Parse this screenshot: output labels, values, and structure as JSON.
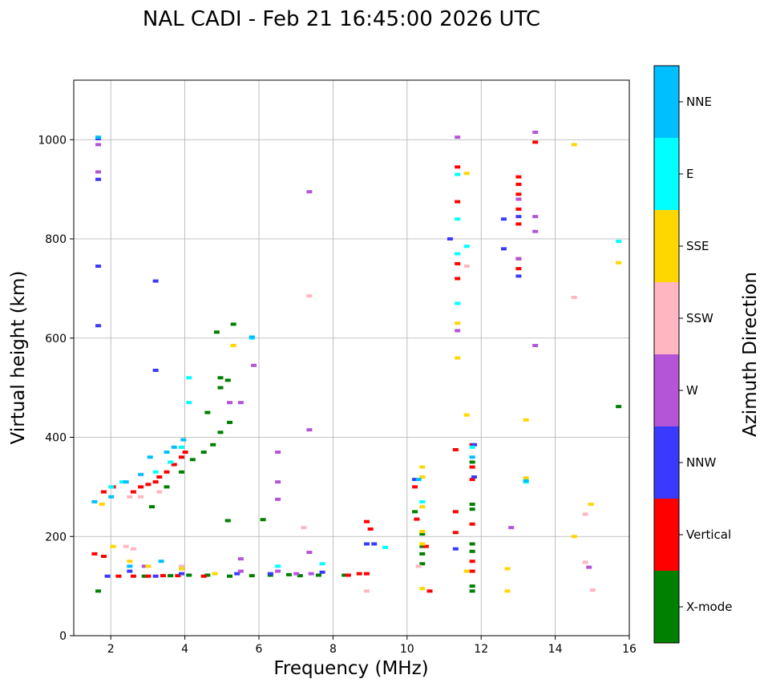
{
  "chart_data": {
    "type": "scatter",
    "title": "NAL CADI - Feb 21 16:45:00 2026 UTC",
    "xlabel": "Frequency (MHz)",
    "ylabel": "Virtual height (km)",
    "xlim": [
      1,
      16
    ],
    "ylim": [
      0,
      1120
    ],
    "x_ticks": [
      2,
      4,
      6,
      8,
      10,
      12,
      14,
      16
    ],
    "y_ticks": [
      0,
      200,
      400,
      600,
      800,
      1000
    ],
    "grid": true,
    "colorbar": {
      "label": "Azimuth Direction",
      "categories": [
        {
          "name": "X-mode",
          "color": "#008000"
        },
        {
          "name": "Vertical",
          "color": "#ff0000"
        },
        {
          "name": "NNW",
          "color": "#3a3aff"
        },
        {
          "name": "W",
          "color": "#b455d8"
        },
        {
          "name": "SSW",
          "color": "#ffb6c1"
        },
        {
          "name": "SSE",
          "color": "#ffd700"
        },
        {
          "name": "E",
          "color": "#00ffff"
        },
        {
          "name": "NNE",
          "color": "#00bfff"
        }
      ]
    },
    "series": [
      {
        "name": "X-mode",
        "points": [
          [
            1.65,
            90
          ],
          [
            2.9,
            120
          ],
          [
            3.6,
            121
          ],
          [
            4.1,
            122
          ],
          [
            4.6,
            122
          ],
          [
            5.2,
            120
          ],
          [
            5.8,
            121
          ],
          [
            6.3,
            122
          ],
          [
            6.8,
            123
          ],
          [
            7.1,
            121
          ],
          [
            7.6,
            122
          ],
          [
            8.3,
            122
          ],
          [
            3.1,
            260
          ],
          [
            3.5,
            300
          ],
          [
            3.9,
            330
          ],
          [
            4.2,
            355
          ],
          [
            4.5,
            370
          ],
          [
            4.75,
            385
          ],
          [
            4.95,
            410
          ],
          [
            5.2,
            430
          ],
          [
            4.6,
            450
          ],
          [
            4.95,
            500
          ],
          [
            4.95,
            520
          ],
          [
            5.15,
            515
          ],
          [
            4.85,
            612
          ],
          [
            5.3,
            628
          ],
          [
            5.15,
            232
          ],
          [
            6.1,
            234
          ],
          [
            10.2,
            250
          ],
          [
            10.4,
            180
          ],
          [
            10.4,
            205
          ],
          [
            10.4,
            165
          ],
          [
            10.4,
            145
          ],
          [
            11.75,
            255
          ],
          [
            11.75,
            265
          ],
          [
            11.75,
            185
          ],
          [
            11.75,
            170
          ],
          [
            11.75,
            100
          ],
          [
            11.75,
            90
          ],
          [
            11.75,
            350
          ],
          [
            15.7,
            462
          ]
        ]
      },
      {
        "name": "Vertical",
        "points": [
          [
            1.55,
            165
          ],
          [
            1.8,
            160
          ],
          [
            2.2,
            120
          ],
          [
            2.6,
            120
          ],
          [
            3.0,
            120
          ],
          [
            3.4,
            121
          ],
          [
            3.8,
            121
          ],
          [
            4.5,
            120
          ],
          [
            2.8,
            300
          ],
          [
            3.0,
            305
          ],
          [
            3.3,
            320
          ],
          [
            3.5,
            330
          ],
          [
            3.7,
            345
          ],
          [
            3.9,
            360
          ],
          [
            4.0,
            370
          ],
          [
            2.6,
            290
          ],
          [
            3.2,
            310
          ],
          [
            1.8,
            290
          ],
          [
            2.05,
            300
          ],
          [
            8.4,
            122
          ],
          [
            8.7,
            125
          ],
          [
            8.9,
            125
          ],
          [
            8.9,
            230
          ],
          [
            9.0,
            215
          ],
          [
            10.25,
            235
          ],
          [
            10.5,
            180
          ],
          [
            10.6,
            90
          ],
          [
            11.3,
            375
          ],
          [
            11.3,
            250
          ],
          [
            11.3,
            208
          ],
          [
            11.35,
            720
          ],
          [
            11.35,
            750
          ],
          [
            11.35,
            875
          ],
          [
            11.35,
            945
          ],
          [
            11.75,
            385
          ],
          [
            11.75,
            340
          ],
          [
            11.75,
            315
          ],
          [
            11.75,
            225
          ],
          [
            11.75,
            150
          ],
          [
            11.75,
            130
          ],
          [
            13.0,
            740
          ],
          [
            13.0,
            760
          ],
          [
            13.0,
            830
          ],
          [
            13.0,
            860
          ],
          [
            13.0,
            890
          ],
          [
            13.0,
            910
          ],
          [
            13.0,
            925
          ],
          [
            13.45,
            995
          ],
          [
            10.2,
            300
          ]
        ]
      },
      {
        "name": "NNW",
        "points": [
          [
            1.65,
            920
          ],
          [
            1.65,
            745
          ],
          [
            1.65,
            1002
          ],
          [
            1.65,
            625
          ],
          [
            3.2,
            535
          ],
          [
            3.2,
            715
          ],
          [
            1.9,
            120
          ],
          [
            2.5,
            130
          ],
          [
            3.2,
            120
          ],
          [
            3.9,
            125
          ],
          [
            5.4,
            125
          ],
          [
            6.3,
            125
          ],
          [
            7.7,
            128
          ],
          [
            8.9,
            185
          ],
          [
            10.2,
            315
          ],
          [
            11.15,
            800
          ],
          [
            11.8,
            385
          ],
          [
            11.8,
            320
          ],
          [
            12.6,
            780
          ],
          [
            12.6,
            840
          ],
          [
            13.0,
            845
          ],
          [
            13.0,
            725
          ],
          [
            11.3,
            175
          ],
          [
            9.1,
            185
          ]
        ]
      },
      {
        "name": "W",
        "points": [
          [
            1.65,
            990
          ],
          [
            1.65,
            935
          ],
          [
            2.9,
            140
          ],
          [
            5.5,
            130
          ],
          [
            6.5,
            130
          ],
          [
            7.0,
            125
          ],
          [
            7.4,
            125
          ],
          [
            5.5,
            155
          ],
          [
            5.2,
            470
          ],
          [
            5.5,
            470
          ],
          [
            5.85,
            545
          ],
          [
            6.5,
            310
          ],
          [
            6.5,
            275
          ],
          [
            6.5,
            370
          ],
          [
            7.35,
            415
          ],
          [
            7.35,
            895
          ],
          [
            7.35,
            168
          ],
          [
            12.8,
            218
          ],
          [
            13.45,
            585
          ],
          [
            13.45,
            845
          ],
          [
            13.45,
            815
          ],
          [
            13.45,
            1015
          ],
          [
            11.35,
            1005
          ],
          [
            11.35,
            615
          ],
          [
            13.0,
            760
          ],
          [
            13.0,
            880
          ],
          [
            14.9,
            138
          ]
        ]
      },
      {
        "name": "SSW",
        "points": [
          [
            2.5,
            280
          ],
          [
            2.8,
            280
          ],
          [
            3.3,
            290
          ],
          [
            2.4,
            180
          ],
          [
            2.6,
            175
          ],
          [
            3.9,
            140
          ],
          [
            7.2,
            218
          ],
          [
            7.35,
            685
          ],
          [
            8.9,
            90
          ],
          [
            10.3,
            140
          ],
          [
            11.6,
            745
          ],
          [
            14.5,
            682
          ],
          [
            14.8,
            245
          ],
          [
            14.8,
            148
          ],
          [
            15.0,
            92
          ]
        ]
      },
      {
        "name": "SSE",
        "points": [
          [
            1.75,
            265
          ],
          [
            2.05,
            180
          ],
          [
            2.5,
            150
          ],
          [
            3.0,
            140
          ],
          [
            3.9,
            135
          ],
          [
            4.8,
            125
          ],
          [
            5.3,
            585
          ],
          [
            10.4,
            320
          ],
          [
            10.4,
            340
          ],
          [
            10.4,
            260
          ],
          [
            10.4,
            210
          ],
          [
            10.4,
            185
          ],
          [
            10.4,
            95
          ],
          [
            11.35,
            560
          ],
          [
            11.35,
            630
          ],
          [
            11.6,
            445
          ],
          [
            11.6,
            932
          ],
          [
            11.6,
            130
          ],
          [
            12.7,
            135
          ],
          [
            12.7,
            90
          ],
          [
            13.2,
            435
          ],
          [
            13.2,
            318
          ],
          [
            14.5,
            990
          ],
          [
            14.5,
            200
          ],
          [
            14.95,
            265
          ],
          [
            15.7,
            752
          ]
        ]
      },
      {
        "name": "E",
        "points": [
          [
            2.0,
            300
          ],
          [
            2.3,
            310
          ],
          [
            3.2,
            330
          ],
          [
            3.6,
            350
          ],
          [
            3.9,
            380
          ],
          [
            4.1,
            470
          ],
          [
            4.1,
            520
          ],
          [
            5.8,
            600
          ],
          [
            6.5,
            140
          ],
          [
            7.7,
            145
          ],
          [
            9.4,
            178
          ],
          [
            10.4,
            270
          ],
          [
            11.35,
            840
          ],
          [
            11.35,
            930
          ],
          [
            11.35,
            670
          ],
          [
            11.35,
            770
          ],
          [
            11.6,
            785
          ],
          [
            11.75,
            380
          ],
          [
            13.2,
            310
          ],
          [
            15.7,
            795
          ]
        ]
      },
      {
        "name": "NNE",
        "points": [
          [
            1.55,
            270
          ],
          [
            2.0,
            280
          ],
          [
            2.4,
            310
          ],
          [
            2.8,
            325
          ],
          [
            3.05,
            360
          ],
          [
            3.5,
            370
          ],
          [
            3.7,
            380
          ],
          [
            3.95,
            395
          ],
          [
            2.5,
            140
          ],
          [
            3.35,
            150
          ],
          [
            1.65,
            1005
          ],
          [
            5.8,
            602
          ],
          [
            10.3,
            315
          ],
          [
            11.75,
            360
          ],
          [
            13.2,
            312
          ]
        ]
      }
    ]
  }
}
